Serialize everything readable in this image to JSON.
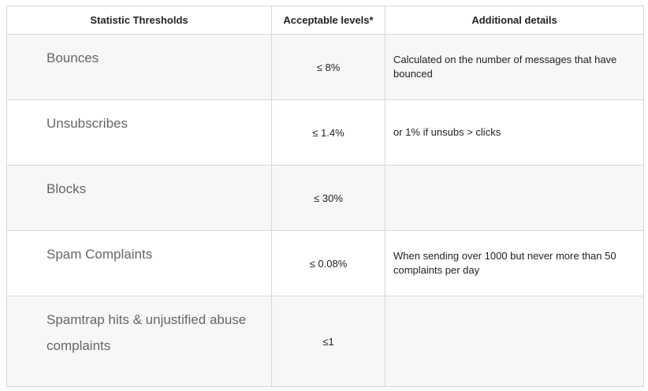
{
  "headers": [
    "Statistic Thresholds",
    "Acceptable levels*",
    "Additional details"
  ],
  "rows": [
    {
      "statistic": "Bounces",
      "level": "≤ 8%",
      "details": "Calculated on the number of messages that have bounced"
    },
    {
      "statistic": "Unsubscribes",
      "level": "≤ 1.4%",
      "details": "or 1% if unsubs > clicks"
    },
    {
      "statistic": "Blocks",
      "level": "≤ 30%",
      "details": ""
    },
    {
      "statistic": "Spam Complaints",
      "level": "≤ 0.08%",
      "details": "When sending over 1000 but never more than 50 complaints per day"
    },
    {
      "statistic": "Spamtrap hits & unjustified abuse complaints",
      "level": "≤1",
      "details": ""
    }
  ]
}
